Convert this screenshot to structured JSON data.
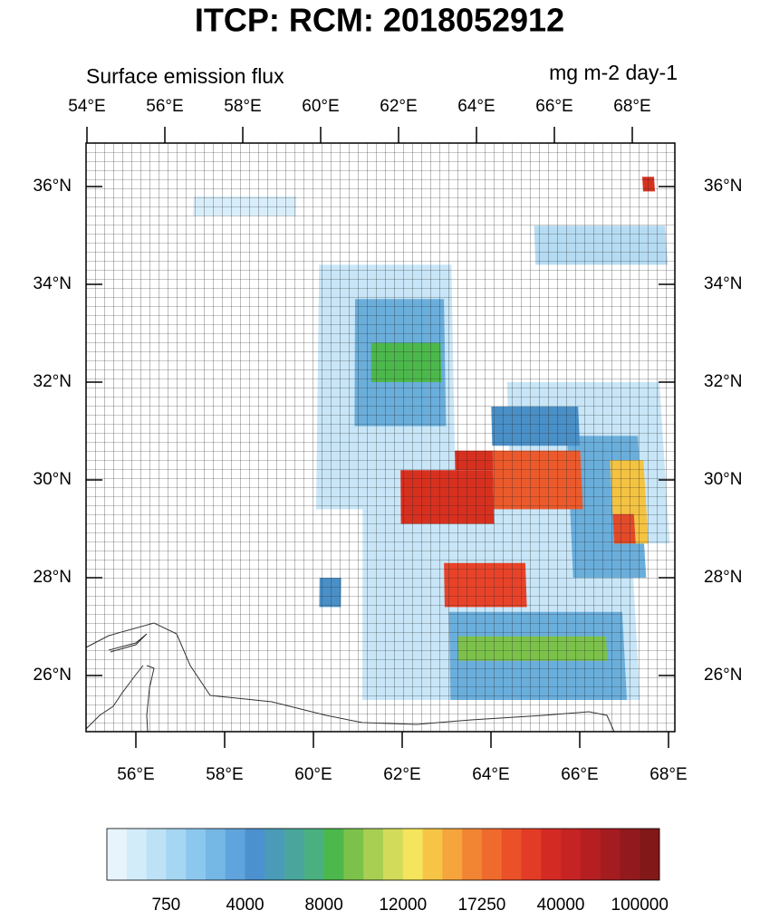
{
  "title": "ITCP: RCM: 2018052912",
  "subtitle_left": "Surface emission flux",
  "subtitle_right": "mg m-2 day-1",
  "map": {
    "top_lon_ticks": [
      {
        "value": 54,
        "label": "54°E"
      },
      {
        "value": 56,
        "label": "56°E"
      },
      {
        "value": 58,
        "label": "58°E"
      },
      {
        "value": 60,
        "label": "60°E"
      },
      {
        "value": 62,
        "label": "62°E"
      },
      {
        "value": 64,
        "label": "64°E"
      },
      {
        "value": 66,
        "label": "66°E"
      },
      {
        "value": 68,
        "label": "68°E"
      }
    ],
    "bottom_lon_ticks": [
      {
        "value": 56,
        "label": "56°E"
      },
      {
        "value": 58,
        "label": "58°E"
      },
      {
        "value": 60,
        "label": "60°E"
      },
      {
        "value": 62,
        "label": "62°E"
      },
      {
        "value": 64,
        "label": "64°E"
      },
      {
        "value": 66,
        "label": "66°E"
      },
      {
        "value": 68,
        "label": "68°E"
      }
    ],
    "lat_ticks": [
      {
        "value": 36,
        "label": "36°N"
      },
      {
        "value": 34,
        "label": "34°N"
      },
      {
        "value": 32,
        "label": "32°N"
      },
      {
        "value": 30,
        "label": "30°N"
      },
      {
        "value": 28,
        "label": "28°N"
      },
      {
        "value": 26,
        "label": "26°N"
      }
    ],
    "patches": [
      {
        "lon": [
          60.0,
          63.3
        ],
        "lat": [
          34.4,
          29.4
        ],
        "color": "#c8e6f8"
      },
      {
        "lon": [
          61.1,
          67.4
        ],
        "lat": [
          29.4,
          25.5
        ],
        "color": "#c8e6f8"
      },
      {
        "lon": [
          64.6,
          68.3
        ],
        "lat": [
          32.0,
          28.7
        ],
        "color": "#c8e6f8"
      },
      {
        "lon": [
          65.4,
          68.7
        ],
        "lat": [
          35.2,
          34.4
        ],
        "color": "#b6dcf3"
      },
      {
        "lon": [
          56.8,
          59.4
        ],
        "lat": [
          35.8,
          35.4
        ],
        "color": "#d8eefb"
      },
      {
        "lon": [
          60.9,
          63.1
        ],
        "lat": [
          33.7,
          31.1
        ],
        "color": "#6aaedc"
      },
      {
        "lon": [
          63.1,
          67.1
        ],
        "lat": [
          27.3,
          25.5
        ],
        "color": "#6aaedc"
      },
      {
        "lon": [
          66.0,
          67.7
        ],
        "lat": [
          30.9,
          28.0
        ],
        "color": "#6aaedc"
      },
      {
        "lon": [
          64.2,
          66.3
        ],
        "lat": [
          31.5,
          30.7
        ],
        "color": "#4a90c8"
      },
      {
        "lon": [
          61.3,
          63.0
        ],
        "lat": [
          32.8,
          32.0
        ],
        "color": "#4cb84c"
      },
      {
        "lon": [
          63.3,
          66.7
        ],
        "lat": [
          26.8,
          26.3
        ],
        "color": "#7cc24a"
      },
      {
        "lon": [
          67.0,
          67.8
        ],
        "lat": [
          30.4,
          28.7
        ],
        "color": "#f4c342"
      },
      {
        "lon": [
          62.0,
          64.2
        ],
        "lat": [
          30.2,
          29.1
        ],
        "color": "#d7301f"
      },
      {
        "lon": [
          63.3,
          64.3
        ],
        "lat": [
          30.6,
          30.2
        ],
        "color": "#d7301f"
      },
      {
        "lon": [
          63.0,
          64.9
        ],
        "lat": [
          28.3,
          27.4
        ],
        "color": "#e8432a"
      },
      {
        "lon": [
          64.2,
          66.3
        ],
        "lat": [
          30.6,
          29.4
        ],
        "color": "#ec5a2c"
      },
      {
        "lon": [
          67.0,
          67.5
        ],
        "lat": [
          29.3,
          28.7
        ],
        "color": "#e34a2a"
      },
      {
        "lon": [
          68.2,
          68.5
        ],
        "lat": [
          36.2,
          35.9
        ],
        "color": "#d7301f"
      },
      {
        "lon": [
          60.1,
          60.6
        ],
        "lat": [
          28.0,
          27.4
        ],
        "color": "#4a90c8"
      }
    ]
  },
  "colorbar": {
    "colors": [
      "#e8f4fb",
      "#d3ecf9",
      "#bde2f6",
      "#a5d6f2",
      "#8cc8ee",
      "#75b7e5",
      "#5fa4dc",
      "#4c91cf",
      "#4a9bb8",
      "#4aa69c",
      "#4bb080",
      "#4cb84c",
      "#7cc24a",
      "#a8cf52",
      "#d3dc5a",
      "#f4e55c",
      "#f6c546",
      "#f5a53c",
      "#f28533",
      "#ef6a2d",
      "#ea5128",
      "#e23c26",
      "#d42a24",
      "#c62424",
      "#b51f22",
      "#a41c20",
      "#921a1e",
      "#821818"
    ],
    "ticks": [
      750,
      4000,
      8000,
      12000,
      17250,
      40000,
      100000
    ]
  }
}
